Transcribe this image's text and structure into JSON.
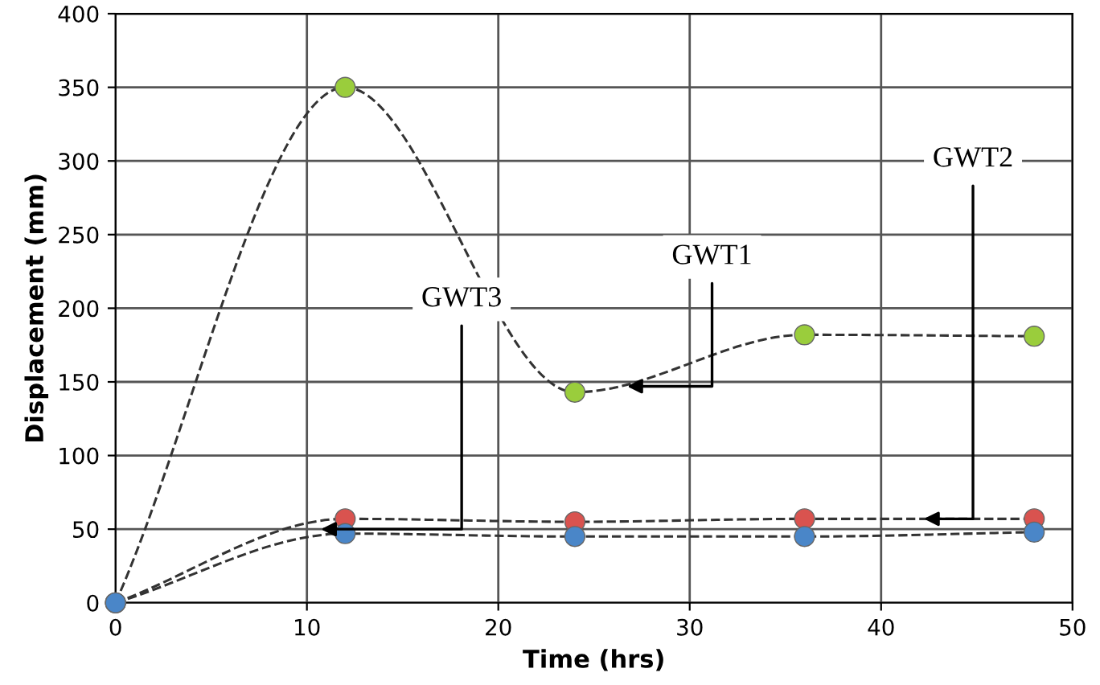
{
  "chart_data": {
    "type": "line",
    "xlabel": "Time (hrs)",
    "ylabel": "Displacement (mm)",
    "x": [
      0,
      12,
      24,
      36,
      48
    ],
    "series": [
      {
        "color": "#333333",
        "colors": [
          "#9acd3c",
          "#9acd3c",
          "#9acd3c",
          "#9acd3c",
          "#9acd3c"
        ],
        "values": [
          0,
          350,
          143,
          182,
          181
        ]
      },
      {
        "color": "#333333",
        "colors": [
          "#d9534f",
          "#d9534f",
          "#d9534f",
          "#d9534f",
          "#d9534f"
        ],
        "values": [
          0,
          57,
          55,
          57,
          57
        ]
      },
      {
        "color": "#333333",
        "colors": [
          "#4a86c8",
          "#4a86c8",
          "#4a86c8",
          "#4a86c8",
          "#4a86c8"
        ],
        "values": [
          0,
          47,
          45,
          45,
          48
        ]
      }
    ],
    "xlim": [
      0,
      50
    ],
    "xticks": [
      0,
      10,
      20,
      30,
      40,
      50
    ],
    "ylim": [
      0,
      400
    ],
    "yticks": [
      0,
      50,
      100,
      150,
      200,
      250,
      300,
      350,
      400
    ],
    "grid": true,
    "marker": "circle",
    "line_style": "dashed",
    "annotations": [
      {
        "text": "GWT1",
        "x": 26.5,
        "y": 147
      },
      {
        "text": "GWT2",
        "x": 42,
        "y": 57
      },
      {
        "text": "GWT3",
        "x": 10.5,
        "y": 50
      }
    ]
  }
}
